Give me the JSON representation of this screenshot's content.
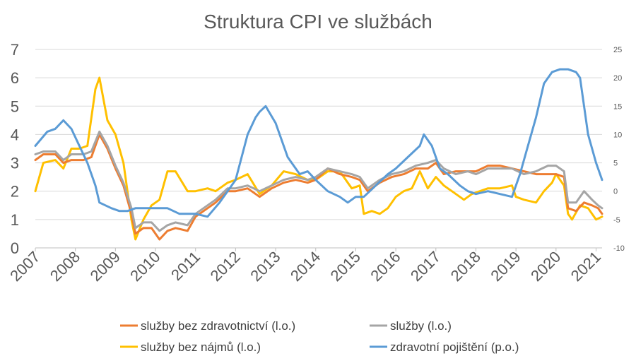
{
  "chart_data": {
    "type": "line",
    "title": "Struktura CPI ve službách",
    "xlabel": "",
    "ylabel_left": "",
    "ylabel_right": "",
    "x_categories": [
      "2007",
      "2008",
      "2009",
      "2010",
      "2011",
      "2012",
      "2013",
      "2014",
      "2015",
      "2016",
      "2017",
      "2018",
      "2019",
      "2020",
      "2021"
    ],
    "ylim_left": [
      0,
      7
    ],
    "ylim_right": [
      -10,
      25
    ],
    "yticks_left": [
      0,
      1,
      2,
      3,
      4,
      5,
      6,
      7
    ],
    "yticks_right": [
      -10,
      -5,
      0,
      5,
      10,
      15,
      20,
      25
    ],
    "grid": true,
    "legend_placement": "bottom",
    "series": [
      {
        "name": "služby bez zdravotnictví (l.o.)",
        "axis": "left",
        "color": "#ED7D31",
        "points": [
          [
            2007.0,
            3.1
          ],
          [
            2007.2,
            3.3
          ],
          [
            2007.5,
            3.3
          ],
          [
            2007.7,
            3.0
          ],
          [
            2007.9,
            3.1
          ],
          [
            2008.2,
            3.1
          ],
          [
            2008.4,
            3.2
          ],
          [
            2008.6,
            4.0
          ],
          [
            2008.8,
            3.5
          ],
          [
            2009.0,
            2.8
          ],
          [
            2009.2,
            2.2
          ],
          [
            2009.4,
            1.2
          ],
          [
            2009.5,
            0.5
          ],
          [
            2009.7,
            0.7
          ],
          [
            2009.9,
            0.7
          ],
          [
            2010.1,
            0.3
          ],
          [
            2010.3,
            0.6
          ],
          [
            2010.5,
            0.7
          ],
          [
            2010.8,
            0.6
          ],
          [
            2011.0,
            1.1
          ],
          [
            2011.3,
            1.4
          ],
          [
            2011.5,
            1.6
          ],
          [
            2011.8,
            2.0
          ],
          [
            2012.0,
            2.0
          ],
          [
            2012.3,
            2.1
          ],
          [
            2012.6,
            1.8
          ],
          [
            2012.9,
            2.1
          ],
          [
            2013.2,
            2.3
          ],
          [
            2013.5,
            2.4
          ],
          [
            2013.8,
            2.3
          ],
          [
            2014.0,
            2.4
          ],
          [
            2014.3,
            2.8
          ],
          [
            2014.6,
            2.6
          ],
          [
            2014.9,
            2.5
          ],
          [
            2015.1,
            2.4
          ],
          [
            2015.3,
            2.0
          ],
          [
            2015.6,
            2.3
          ],
          [
            2015.9,
            2.5
          ],
          [
            2016.2,
            2.6
          ],
          [
            2016.5,
            2.8
          ],
          [
            2016.8,
            2.8
          ],
          [
            2017.0,
            3.0
          ],
          [
            2017.2,
            2.6
          ],
          [
            2017.5,
            2.7
          ],
          [
            2017.8,
            2.7
          ],
          [
            2018.0,
            2.7
          ],
          [
            2018.3,
            2.9
          ],
          [
            2018.6,
            2.9
          ],
          [
            2018.9,
            2.8
          ],
          [
            2019.2,
            2.7
          ],
          [
            2019.5,
            2.6
          ],
          [
            2019.8,
            2.6
          ],
          [
            2020.0,
            2.6
          ],
          [
            2020.2,
            2.5
          ],
          [
            2020.3,
            1.4
          ],
          [
            2020.5,
            1.3
          ],
          [
            2020.7,
            1.6
          ],
          [
            2020.9,
            1.5
          ],
          [
            2021.05,
            1.4
          ],
          [
            2021.15,
            1.2
          ]
        ]
      },
      {
        "name": "služby (l.o.)",
        "axis": "left",
        "color": "#A5A5A5",
        "points": [
          [
            2007.0,
            3.3
          ],
          [
            2007.2,
            3.4
          ],
          [
            2007.5,
            3.4
          ],
          [
            2007.7,
            3.1
          ],
          [
            2007.9,
            3.3
          ],
          [
            2008.2,
            3.3
          ],
          [
            2008.4,
            3.4
          ],
          [
            2008.6,
            4.1
          ],
          [
            2008.8,
            3.6
          ],
          [
            2009.0,
            2.9
          ],
          [
            2009.2,
            2.3
          ],
          [
            2009.4,
            1.4
          ],
          [
            2009.5,
            0.7
          ],
          [
            2009.7,
            0.9
          ],
          [
            2009.9,
            0.9
          ],
          [
            2010.1,
            0.6
          ],
          [
            2010.3,
            0.8
          ],
          [
            2010.5,
            0.9
          ],
          [
            2010.8,
            0.8
          ],
          [
            2011.0,
            1.2
          ],
          [
            2011.3,
            1.5
          ],
          [
            2011.5,
            1.7
          ],
          [
            2011.8,
            2.1
          ],
          [
            2012.0,
            2.1
          ],
          [
            2012.3,
            2.2
          ],
          [
            2012.6,
            2.0
          ],
          [
            2012.9,
            2.2
          ],
          [
            2013.2,
            2.4
          ],
          [
            2013.5,
            2.5
          ],
          [
            2013.8,
            2.4
          ],
          [
            2014.0,
            2.5
          ],
          [
            2014.3,
            2.8
          ],
          [
            2014.6,
            2.7
          ],
          [
            2014.9,
            2.6
          ],
          [
            2015.1,
            2.5
          ],
          [
            2015.3,
            2.1
          ],
          [
            2015.6,
            2.4
          ],
          [
            2015.9,
            2.6
          ],
          [
            2016.2,
            2.7
          ],
          [
            2016.5,
            2.9
          ],
          [
            2016.8,
            3.0
          ],
          [
            2017.0,
            3.1
          ],
          [
            2017.2,
            2.8
          ],
          [
            2017.5,
            2.6
          ],
          [
            2017.8,
            2.7
          ],
          [
            2018.0,
            2.6
          ],
          [
            2018.3,
            2.8
          ],
          [
            2018.6,
            2.8
          ],
          [
            2018.9,
            2.8
          ],
          [
            2019.2,
            2.6
          ],
          [
            2019.5,
            2.7
          ],
          [
            2019.8,
            2.9
          ],
          [
            2020.0,
            2.9
          ],
          [
            2020.2,
            2.7
          ],
          [
            2020.3,
            1.6
          ],
          [
            2020.5,
            1.6
          ],
          [
            2020.7,
            2.0
          ],
          [
            2020.9,
            1.7
          ],
          [
            2021.05,
            1.5
          ],
          [
            2021.15,
            1.4
          ]
        ]
      },
      {
        "name": "služby bez nájmů (l.o.)",
        "axis": "left",
        "color": "#FFC000",
        "points": [
          [
            2007.0,
            2.0
          ],
          [
            2007.2,
            3.0
          ],
          [
            2007.5,
            3.1
          ],
          [
            2007.7,
            2.8
          ],
          [
            2007.9,
            3.5
          ],
          [
            2008.1,
            3.5
          ],
          [
            2008.3,
            3.6
          ],
          [
            2008.5,
            5.6
          ],
          [
            2008.6,
            6.0
          ],
          [
            2008.8,
            4.5
          ],
          [
            2009.0,
            4.0
          ],
          [
            2009.2,
            3.0
          ],
          [
            2009.4,
            1.0
          ],
          [
            2009.5,
            0.3
          ],
          [
            2009.7,
            1.0
          ],
          [
            2009.9,
            1.5
          ],
          [
            2010.1,
            1.7
          ],
          [
            2010.3,
            2.7
          ],
          [
            2010.5,
            2.7
          ],
          [
            2010.8,
            2.0
          ],
          [
            2011.0,
            2.0
          ],
          [
            2011.3,
            2.1
          ],
          [
            2011.5,
            2.0
          ],
          [
            2011.8,
            2.3
          ],
          [
            2012.0,
            2.4
          ],
          [
            2012.3,
            2.6
          ],
          [
            2012.6,
            1.9
          ],
          [
            2012.9,
            2.2
          ],
          [
            2013.2,
            2.7
          ],
          [
            2013.5,
            2.6
          ],
          [
            2013.8,
            2.4
          ],
          [
            2014.0,
            2.4
          ],
          [
            2014.3,
            2.7
          ],
          [
            2014.6,
            2.7
          ],
          [
            2014.9,
            2.1
          ],
          [
            2015.1,
            2.2
          ],
          [
            2015.2,
            1.2
          ],
          [
            2015.4,
            1.3
          ],
          [
            2015.6,
            1.2
          ],
          [
            2015.8,
            1.4
          ],
          [
            2016.0,
            1.8
          ],
          [
            2016.2,
            2.0
          ],
          [
            2016.4,
            2.1
          ],
          [
            2016.6,
            2.7
          ],
          [
            2016.8,
            2.1
          ],
          [
            2017.0,
            2.5
          ],
          [
            2017.2,
            2.2
          ],
          [
            2017.5,
            1.9
          ],
          [
            2017.7,
            1.7
          ],
          [
            2017.9,
            1.9
          ],
          [
            2018.1,
            2.0
          ],
          [
            2018.3,
            2.1
          ],
          [
            2018.6,
            2.1
          ],
          [
            2018.9,
            2.2
          ],
          [
            2019.0,
            1.8
          ],
          [
            2019.2,
            1.7
          ],
          [
            2019.5,
            1.6
          ],
          [
            2019.7,
            2.0
          ],
          [
            2019.9,
            2.3
          ],
          [
            2020.0,
            2.6
          ],
          [
            2020.2,
            2.2
          ],
          [
            2020.3,
            1.2
          ],
          [
            2020.4,
            1.0
          ],
          [
            2020.6,
            1.5
          ],
          [
            2020.8,
            1.4
          ],
          [
            2021.0,
            1.0
          ],
          [
            2021.15,
            1.1
          ]
        ]
      },
      {
        "name": "zdravotní pojištění (p.o.)",
        "axis": "right",
        "color": "#5B9BD5",
        "points": [
          [
            2007.0,
            8.0
          ],
          [
            2007.3,
            10.5
          ],
          [
            2007.5,
            11.0
          ],
          [
            2007.7,
            12.5
          ],
          [
            2007.9,
            11.0
          ],
          [
            2008.1,
            8.0
          ],
          [
            2008.3,
            5.0
          ],
          [
            2008.5,
            1.0
          ],
          [
            2008.6,
            -2.0
          ],
          [
            2008.9,
            -3.0
          ],
          [
            2009.1,
            -3.5
          ],
          [
            2009.3,
            -3.5
          ],
          [
            2009.5,
            -3.0
          ],
          [
            2009.7,
            -3.0
          ],
          [
            2009.9,
            -3.0
          ],
          [
            2010.1,
            -3.0
          ],
          [
            2010.3,
            -3.0
          ],
          [
            2010.6,
            -4.0
          ],
          [
            2010.9,
            -4.0
          ],
          [
            2011.0,
            -4.0
          ],
          [
            2011.3,
            -4.5
          ],
          [
            2011.6,
            -2.0
          ],
          [
            2011.8,
            0.0
          ],
          [
            2012.0,
            2.0
          ],
          [
            2012.3,
            10.0
          ],
          [
            2012.5,
            13.0
          ],
          [
            2012.6,
            14.0
          ],
          [
            2012.75,
            15.0
          ],
          [
            2013.0,
            12.0
          ],
          [
            2013.3,
            6.0
          ],
          [
            2013.6,
            3.0
          ],
          [
            2013.8,
            3.5
          ],
          [
            2014.0,
            2.0
          ],
          [
            2014.3,
            0.0
          ],
          [
            2014.6,
            -1.0
          ],
          [
            2014.8,
            -2.0
          ],
          [
            2015.0,
            -1.0
          ],
          [
            2015.2,
            -1.0
          ],
          [
            2015.5,
            1.0
          ],
          [
            2015.8,
            3.0
          ],
          [
            2016.0,
            4.0
          ],
          [
            2016.3,
            6.0
          ],
          [
            2016.6,
            8.0
          ],
          [
            2016.7,
            10.0
          ],
          [
            2016.9,
            8.0
          ],
          [
            2017.1,
            4.0
          ],
          [
            2017.3,
            3.0
          ],
          [
            2017.6,
            1.0
          ],
          [
            2017.8,
            0.0
          ],
          [
            2018.0,
            -0.5
          ],
          [
            2018.3,
            0.0
          ],
          [
            2018.6,
            -0.5
          ],
          [
            2018.9,
            -1.0
          ],
          [
            2019.1,
            3.0
          ],
          [
            2019.3,
            8.0
          ],
          [
            2019.5,
            13.0
          ],
          [
            2019.7,
            19.0
          ],
          [
            2019.9,
            21.0
          ],
          [
            2020.1,
            21.5
          ],
          [
            2020.3,
            21.5
          ],
          [
            2020.5,
            21.0
          ],
          [
            2020.6,
            20.0
          ],
          [
            2020.7,
            15.0
          ],
          [
            2020.8,
            10.0
          ],
          [
            2021.0,
            5.0
          ],
          [
            2021.15,
            2.0
          ]
        ]
      }
    ]
  }
}
